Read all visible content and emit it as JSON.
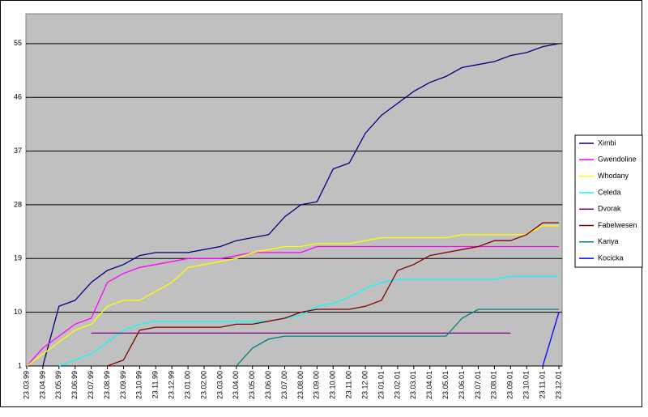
{
  "chart_data": {
    "type": "line",
    "categories": [
      "23.03.99",
      "23.04.99",
      "23.05.99",
      "23.06.99",
      "23.07.99",
      "23.08.99",
      "23.09.99",
      "23.10.99",
      "23.11.99",
      "23.12.99",
      "23.01.00",
      "23.02.00",
      "23.03.00",
      "23.04.00",
      "23.05.00",
      "23.06.00",
      "23.07.00",
      "23.08.00",
      "23.09.00",
      "23.10.00",
      "23.11.00",
      "23.12.00",
      "23.01.01",
      "23.02.01",
      "23.03.01",
      "23.04.01",
      "23.05.01",
      "23.06.01",
      "23.07.01",
      "23.08.01",
      "23.09.01",
      "23.10.01",
      "23.11.01",
      "23.12.01"
    ],
    "series": [
      {
        "name": "Ximbi",
        "color": "#000080",
        "values": [
          null,
          1,
          11,
          12,
          15,
          17,
          18,
          19.5,
          20,
          20,
          20,
          20.5,
          21,
          22,
          22.5,
          23,
          26,
          28,
          28.5,
          34,
          35,
          40,
          43,
          45,
          47,
          48.5,
          49.5,
          51,
          51.5,
          52,
          53,
          53.5,
          54.5,
          55
        ]
      },
      {
        "name": "Gwendoline",
        "color": "#ff00ff",
        "values": [
          1,
          4,
          6,
          8,
          9,
          15,
          16.5,
          17.5,
          18,
          18.5,
          19,
          19,
          19,
          19.5,
          20,
          20,
          20,
          20,
          21,
          21,
          21,
          21,
          21,
          21,
          21,
          21,
          21,
          21,
          21,
          21,
          21,
          21,
          21,
          21
        ]
      },
      {
        "name": "Whodany",
        "color": "#ffff00",
        "values": [
          1,
          3,
          5,
          7,
          8,
          11,
          12,
          12,
          13.5,
          15,
          17.5,
          18,
          18.5,
          19,
          20,
          20.5,
          21,
          21,
          21.5,
          21.5,
          21.5,
          22,
          22.5,
          22.5,
          22.5,
          22.5,
          22.5,
          23,
          23,
          23,
          23,
          23,
          24.5,
          24.5
        ]
      },
      {
        "name": "Celeda",
        "color": "#00ffff",
        "values": [
          null,
          null,
          1,
          2,
          3,
          5,
          7,
          8,
          8.5,
          8.5,
          8.5,
          8.5,
          8.5,
          8.5,
          8.5,
          8.5,
          9,
          9.5,
          11,
          11.5,
          12.5,
          14,
          15,
          15.5,
          15.5,
          15.5,
          15.5,
          15.5,
          15.5,
          15.5,
          16,
          16,
          16,
          16
        ]
      },
      {
        "name": "Dvorak",
        "color": "#800080",
        "values": [
          null,
          null,
          null,
          null,
          6.5,
          6.5,
          6.5,
          6.5,
          6.5,
          6.5,
          6.5,
          6.5,
          6.5,
          6.5,
          6.5,
          6.5,
          6.5,
          6.5,
          6.5,
          6.5,
          6.5,
          6.5,
          6.5,
          6.5,
          6.5,
          6.5,
          6.5,
          6.5,
          6.5,
          6.5,
          6.5,
          null,
          null,
          null
        ]
      },
      {
        "name": "Fabelwesen",
        "color": "#800000",
        "values": [
          null,
          null,
          null,
          null,
          null,
          1,
          2,
          7,
          7.5,
          7.5,
          7.5,
          7.5,
          7.5,
          8,
          8,
          8.5,
          9,
          10,
          10.5,
          10.5,
          10.5,
          11,
          12,
          17,
          18,
          19.5,
          20,
          20.5,
          21,
          22,
          22,
          23,
          25,
          25
        ]
      },
      {
        "name": "Kariya",
        "color": "#008080",
        "values": [
          null,
          null,
          null,
          null,
          null,
          null,
          null,
          null,
          null,
          null,
          null,
          null,
          null,
          1,
          4,
          5.5,
          6,
          6,
          6,
          6,
          6,
          6,
          6,
          6,
          6,
          6,
          6,
          9,
          10.5,
          10.5,
          10.5,
          10.5,
          10.5,
          10.5
        ]
      },
      {
        "name": "Kocicka",
        "color": "#0000ff",
        "values": [
          null,
          null,
          null,
          null,
          null,
          null,
          null,
          null,
          null,
          null,
          null,
          null,
          null,
          null,
          null,
          null,
          null,
          null,
          null,
          null,
          null,
          null,
          null,
          null,
          null,
          null,
          null,
          null,
          null,
          null,
          null,
          null,
          1,
          10
        ]
      }
    ],
    "ylim": [
      1,
      60
    ],
    "yticks": [
      1,
      10,
      19,
      28,
      37,
      46,
      55
    ],
    "grid": true,
    "legend": "right"
  }
}
